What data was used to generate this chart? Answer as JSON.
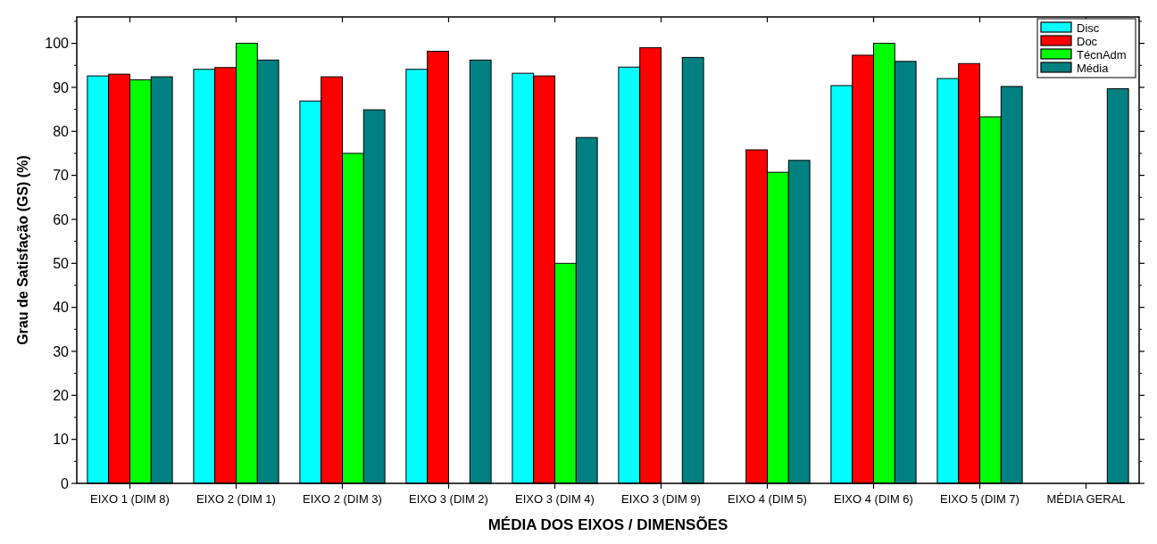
{
  "chart_data": {
    "type": "bar",
    "xlabel": "MÉDIA DOS EIXOS / DIMENSÕES",
    "ylabel": "Grau de Satisfação (GS)  (%)",
    "categories": [
      "EIXO 1 (DIM 8)",
      "EIXO 2 (DIM 1)",
      "EIXO 2 (DIM 3)",
      "EIXO 3 (DIM 2)",
      "EIXO 3 (DIM 4)",
      "EIXO 3 (DIM 9)",
      "EIXO 4 (DIM 5)",
      "EIXO 4 (DIM 6)",
      "EIXO 5 (DIM 7)",
      "MÉDIA GERAL"
    ],
    "series": [
      {
        "name": "Disc",
        "color": "#00ffff",
        "values": [
          92.6,
          94.1,
          86.9,
          94.1,
          93.2,
          94.6,
          null,
          90.4,
          92.0,
          null
        ]
      },
      {
        "name": "Doc",
        "color": "#ff0000",
        "values": [
          93.0,
          94.5,
          92.4,
          98.2,
          92.6,
          99.0,
          75.8,
          97.3,
          95.4,
          null
        ]
      },
      {
        "name": "TécnAdm",
        "color": "#00ff00",
        "values": [
          91.7,
          100,
          75,
          null,
          50,
          null,
          70.7,
          100,
          83.3,
          null
        ]
      },
      {
        "name": "Média",
        "color": "#008080",
        "values": [
          92.4,
          96.2,
          84.9,
          96.2,
          78.6,
          96.8,
          73.4,
          95.9,
          90.2,
          89.7
        ]
      }
    ],
    "ylim": [
      0,
      106
    ],
    "yticks": [
      0,
      10,
      20,
      30,
      40,
      50,
      60,
      70,
      80,
      90,
      100
    ],
    "grid": false,
    "legend": "top right"
  }
}
